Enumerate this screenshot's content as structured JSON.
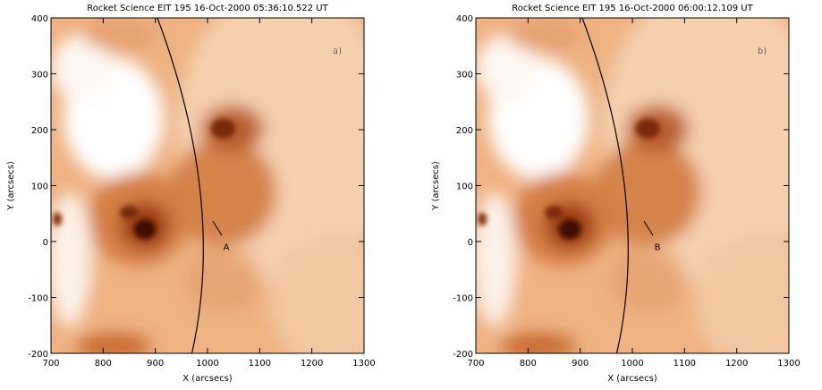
{
  "chart_data": [
    {
      "type": "image",
      "title": "Rocket Science EIT 195 16-Oct-2000 05:36:10.522 UT",
      "xlabel": "X (arcsecs)",
      "ylabel": "Y (arcsecs)",
      "xlim": [
        700,
        1300
      ],
      "xticks": [
        700,
        800,
        900,
        1000,
        1100,
        1200,
        1300
      ],
      "ylim": [
        -200,
        400
      ],
      "yticks": [
        -200,
        -100,
        0,
        100,
        200,
        300,
        400
      ],
      "panel_label": "a)",
      "annotation": "A"
    },
    {
      "type": "image",
      "title": "Rocket Science EIT 195 16-Oct-2000 06:00:12.109 UT",
      "xlabel": "X (arcsecs)",
      "ylabel": "Y (arcsecs)",
      "xlim": [
        700,
        1300
      ],
      "xticks": [
        700,
        800,
        900,
        1000,
        1100,
        1200,
        1300
      ],
      "ylim": [
        -200,
        400
      ],
      "yticks": [
        -200,
        -100,
        0,
        100,
        200,
        300,
        400
      ],
      "panel_label": "b)",
      "annotation": "B"
    }
  ]
}
